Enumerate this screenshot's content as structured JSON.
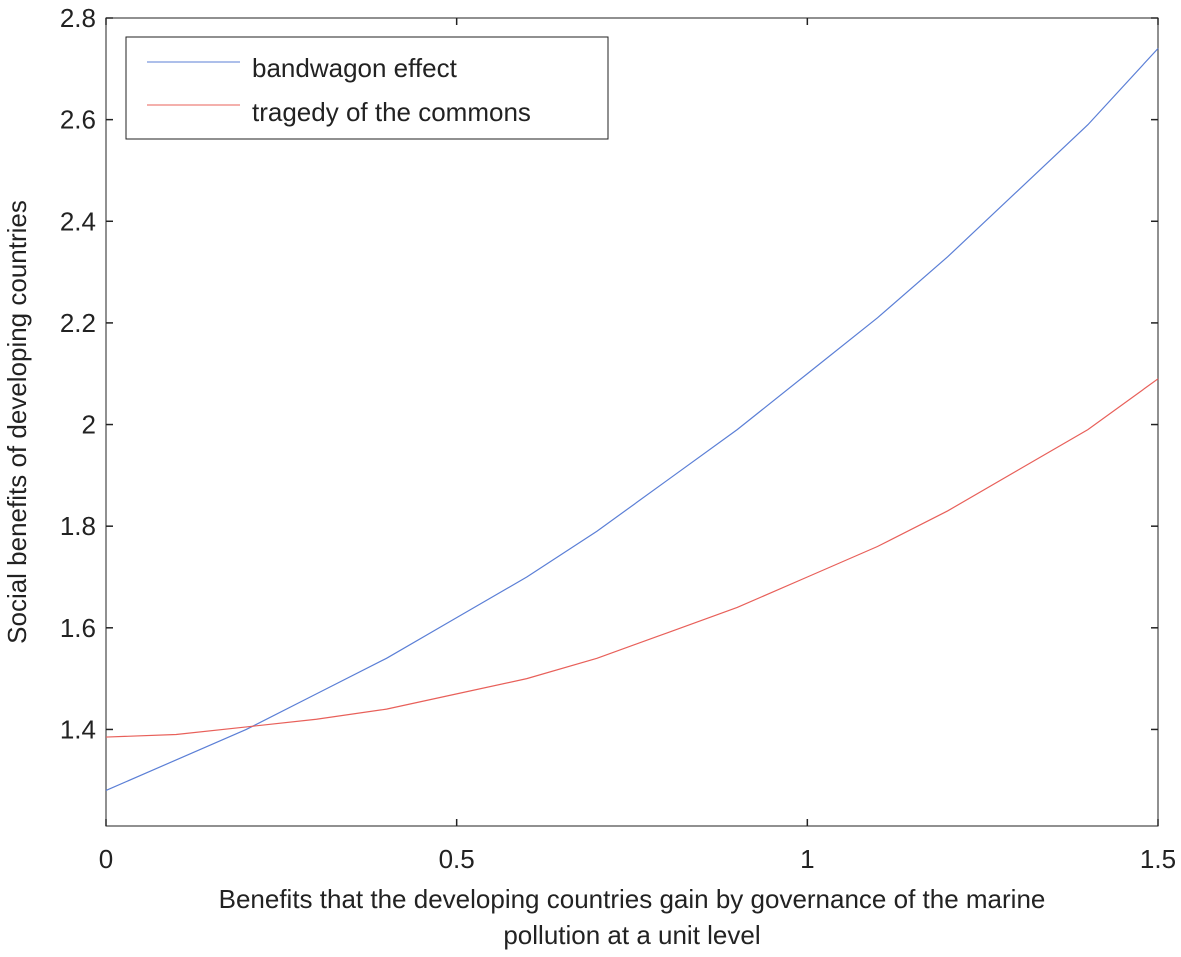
{
  "chart_data": {
    "type": "line",
    "xlabel_lines": [
      "Benefits that the developing countries gain by governance of the marine",
      "pollution at a unit level"
    ],
    "ylabel": "Social benefits of developing countries",
    "xlim": [
      0,
      1.5
    ],
    "ylim": [
      1.21,
      2.8
    ],
    "x_ticks": [
      0,
      0.5,
      1,
      1.5
    ],
    "x_tick_labels": [
      "0",
      "0.5",
      "1",
      "1.5"
    ],
    "y_ticks": [
      1.4,
      1.6,
      1.8,
      2.0,
      2.2,
      2.4,
      2.6,
      2.8
    ],
    "y_tick_labels": [
      "1.4",
      "1.6",
      "1.8",
      "2",
      "2.2",
      "2.4",
      "2.6",
      "2.8"
    ],
    "grid": false,
    "legend_position": "top-left",
    "x": [
      0,
      0.1,
      0.2,
      0.3,
      0.4,
      0.5,
      0.6,
      0.7,
      0.8,
      0.9,
      1.0,
      1.1,
      1.2,
      1.3,
      1.4,
      1.5
    ],
    "series": [
      {
        "name": "bandwagon effect",
        "color": "#5b7fd6",
        "values": [
          1.28,
          1.34,
          1.4,
          1.47,
          1.54,
          1.62,
          1.7,
          1.79,
          1.89,
          1.99,
          2.1,
          2.21,
          2.33,
          2.46,
          2.59,
          2.74
        ]
      },
      {
        "name": "tragedy of the commons",
        "color": "#e8605a",
        "values": [
          1.385,
          1.39,
          1.405,
          1.42,
          1.44,
          1.47,
          1.5,
          1.54,
          1.59,
          1.64,
          1.7,
          1.76,
          1.83,
          1.91,
          1.99,
          2.09
        ]
      }
    ]
  }
}
